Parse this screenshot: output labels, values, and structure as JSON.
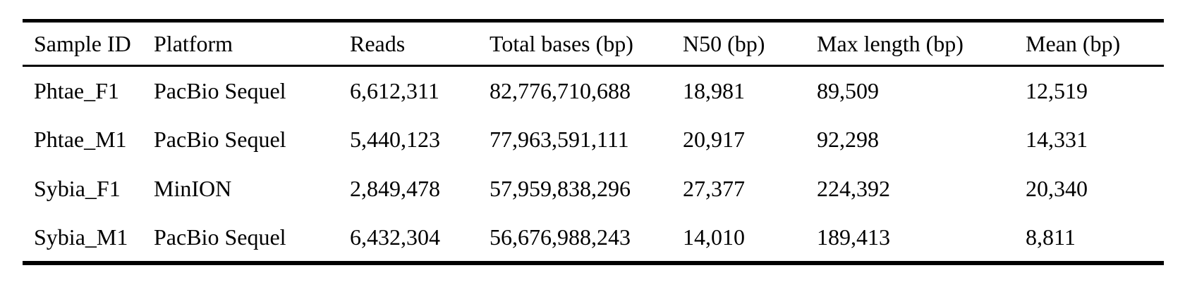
{
  "table": {
    "columns": [
      "Sample ID",
      "Platform",
      "Reads",
      "Total bases (bp)",
      "N50 (bp)",
      "Max length (bp)",
      "Mean (bp)"
    ],
    "rows": [
      [
        "Phtae_F1",
        "PacBio Sequel",
        "6,612,311",
        "82,776,710,688",
        "18,981",
        "89,509",
        "12,519"
      ],
      [
        "Phtae_M1",
        "PacBio Sequel",
        "5,440,123",
        "77,963,591,111",
        "20,917",
        "92,298",
        "14,331"
      ],
      [
        "Sybia_F1",
        "MinION",
        "2,849,478",
        "57,959,838,296",
        "27,377",
        "224,392",
        "20,340"
      ],
      [
        "Sybia_M1",
        "PacBio Sequel",
        "6,432,304",
        "56,676,988,243",
        "14,010",
        "189,413",
        "8,811"
      ]
    ]
  },
  "colors": {
    "background": "#ffffff",
    "text": "#000000",
    "rule": "#000000"
  }
}
